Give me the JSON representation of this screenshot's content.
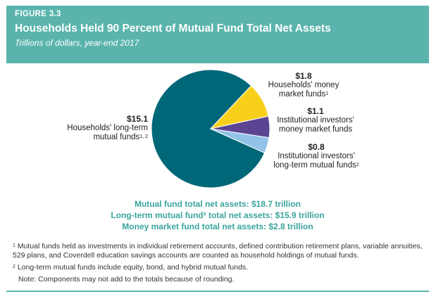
{
  "header": {
    "figure_label": "FIGURE 3.3",
    "title": "Households Held 90 Percent of Mutual Fund Total Net Assets",
    "subtitle": "Trillions of dollars, year-end 2017"
  },
  "chart_data": {
    "type": "pie",
    "unit": "Trillions of dollars",
    "slices": [
      {
        "value_label": "$15.1",
        "value": 15.1,
        "label": "Households' long-term mutual funds",
        "label_lines": [
          "Households' long-term",
          "mutual funds"
        ],
        "sup": "1, 2",
        "color": "#006778"
      },
      {
        "value_label": "$1.8",
        "value": 1.8,
        "label": "Households' money market funds",
        "label_lines": [
          "Households' money",
          "market funds"
        ],
        "sup": "1",
        "color": "#f8d01b"
      },
      {
        "value_label": "$1.1",
        "value": 1.1,
        "label": "Institutional investors' money market funds",
        "label_lines": [
          "Institutional investors'",
          "money market funds"
        ],
        "sup": "",
        "color": "#5b4593"
      },
      {
        "value_label": "$0.8",
        "value": 0.8,
        "label": "Institutional investors' long-term mutual funds",
        "label_lines": [
          "Institutional investors'",
          "long-term mutual funds"
        ],
        "sup": "2",
        "color": "#92c2e8"
      }
    ]
  },
  "totals": [
    "Mutual fund total net assets: $18.7 trillion",
    "Long-term mutual fund² total net assets: $15.9 trillion",
    "Money market fund total net assets: $2.8 trillion"
  ],
  "footnotes": {
    "fn1_mark": "1",
    "fn1": "Mutual funds held as investments in individual retirement accounts, defined contribution retirement plans, variable annuities, 529 plans, and Coverdell education savings accounts are counted as household holdings of mutual funds.",
    "fn2_mark": "2",
    "fn2": "Long-term mutual funds include equity, bond, and hybrid mutual funds.",
    "note": "Note: Components may not add to the totals because of rounding."
  }
}
